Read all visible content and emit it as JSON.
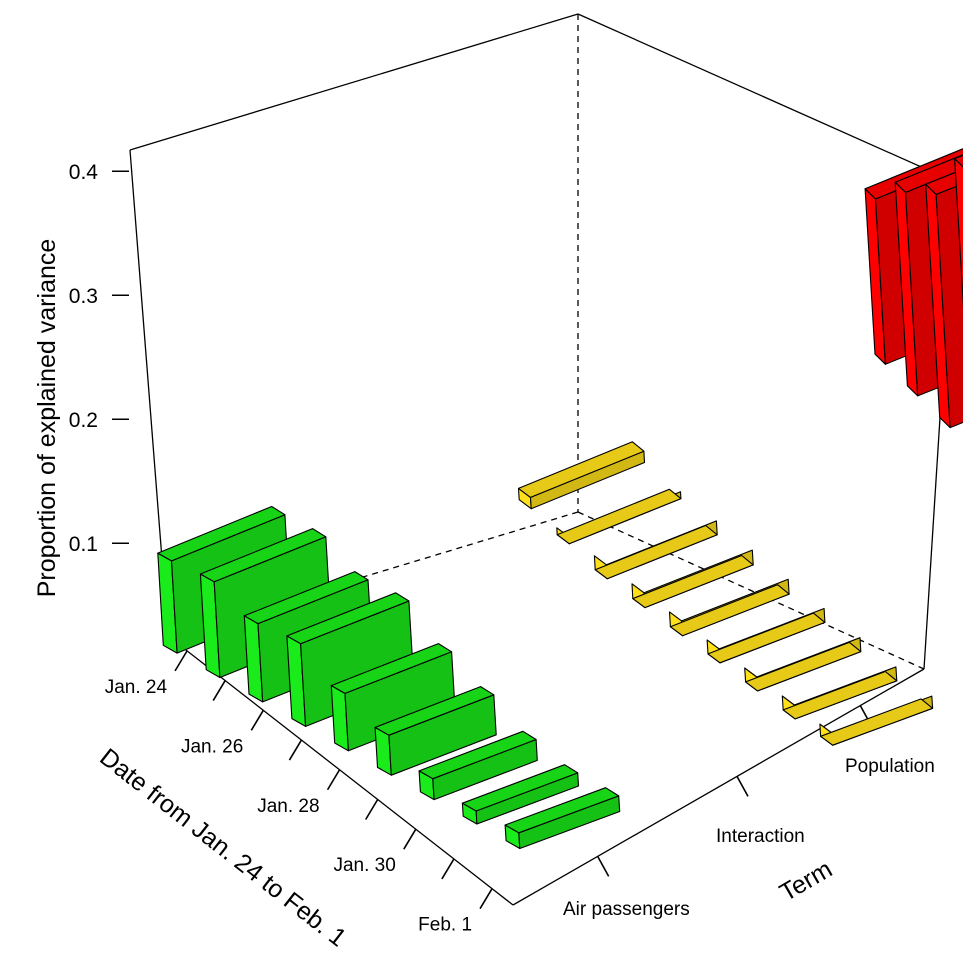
{
  "chart_data": {
    "type": "bar",
    "subtype": "3d-bar",
    "title": "",
    "zlabel": "Proportion of explained variance",
    "xlabel": "Date from Jan. 24 to Feb. 1",
    "ylabel": "Term",
    "zlim": [
      0,
      0.45
    ],
    "z_ticks": [
      "0.1",
      "0.2",
      "0.3",
      "0.4"
    ],
    "x_tick_labels": [
      "Jan. 24",
      "Jan. 26",
      "Jan. 28",
      "Jan. 30",
      "Feb. 1"
    ],
    "dates": [
      "Jan. 24",
      "Jan. 25",
      "Jan. 26",
      "Jan. 27",
      "Jan. 28",
      "Jan. 29",
      "Jan. 30",
      "Jan. 31",
      "Feb. 1"
    ],
    "categories": [
      "Air passengers",
      "Interaction",
      "Population"
    ],
    "series": [
      {
        "name": "Air passengers",
        "color": "#1aeb1a",
        "values": [
          0.126,
          0.13,
          0.11,
          0.115,
          0.086,
          0.066,
          0.044,
          0.035,
          0.038
        ]
      },
      {
        "name": "Interaction",
        "color": "#ffe01a",
        "values": [
          0.033,
          0.012,
          0.004,
          0.003,
          0.003,
          0.004,
          0.004,
          0.004,
          0.006
        ]
      },
      {
        "name": "Population",
        "color": "#ff0000",
        "values": [
          0.21,
          0.254,
          0.288,
          0.354,
          0.404,
          0.376,
          0.349,
          0.367,
          0.397
        ]
      }
    ],
    "grid": false,
    "legend": "none"
  }
}
